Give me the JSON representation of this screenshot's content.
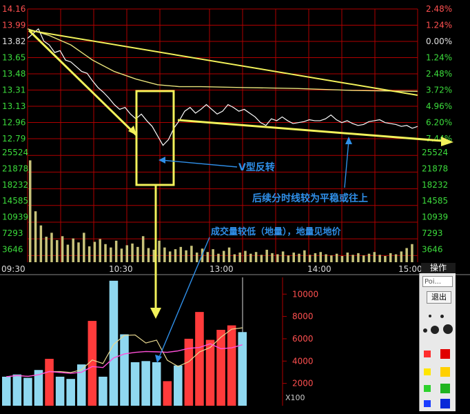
{
  "chart_data": [
    {
      "type": "line",
      "name": "intraday-price",
      "price_ticks": [
        "14.16",
        "13.99",
        "13.82",
        "13.65",
        "13.48",
        "13.31",
        "13.13",
        "12.96",
        "12.79"
      ],
      "percent_ticks": [
        "2.48%",
        "1.24%",
        "0.00%",
        "1.24%",
        "2.48%",
        "3.72%",
        "4.96%",
        "6.20%",
        "7.44%"
      ],
      "volume_ticks": [
        "25524",
        "21878",
        "18232",
        "14585",
        "10939",
        "7293",
        "3646"
      ],
      "time_ticks": [
        "09:30",
        "10:30",
        "13:00",
        "14:00",
        "15:00"
      ],
      "price_ylim": [
        12.79,
        14.16
      ],
      "prev_close": 13.82,
      "price_series": [
        [
          0,
          13.85
        ],
        [
          1,
          13.9
        ],
        [
          2,
          13.95
        ],
        [
          3,
          13.82
        ],
        [
          4,
          13.78
        ],
        [
          5,
          13.7
        ],
        [
          6,
          13.72
        ],
        [
          7,
          13.62
        ],
        [
          8,
          13.6
        ],
        [
          9,
          13.55
        ],
        [
          10,
          13.5
        ],
        [
          11,
          13.48
        ],
        [
          12,
          13.4
        ],
        [
          13,
          13.33
        ],
        [
          14,
          13.28
        ],
        [
          15,
          13.22
        ],
        [
          16,
          13.15
        ],
        [
          17,
          13.1
        ],
        [
          18,
          13.12
        ],
        [
          19,
          13.05
        ],
        [
          20,
          13.0
        ],
        [
          21,
          13.05
        ],
        [
          22,
          12.98
        ],
        [
          23,
          12.92
        ],
        [
          24,
          12.82
        ],
        [
          25,
          12.72
        ],
        [
          26,
          12.78
        ],
        [
          27,
          12.9
        ],
        [
          28,
          12.98
        ],
        [
          29,
          13.08
        ],
        [
          30,
          13.12
        ],
        [
          31,
          13.06
        ],
        [
          32,
          13.1
        ],
        [
          33,
          13.15
        ],
        [
          34,
          13.1
        ],
        [
          35,
          13.05
        ],
        [
          36,
          13.08
        ],
        [
          37,
          13.15
        ],
        [
          38,
          13.12
        ],
        [
          39,
          13.08
        ],
        [
          40,
          13.1
        ],
        [
          41,
          13.06
        ],
        [
          42,
          13.02
        ],
        [
          43,
          12.96
        ],
        [
          44,
          12.93
        ],
        [
          45,
          13.0
        ],
        [
          46,
          12.98
        ],
        [
          47,
          13.02
        ],
        [
          48,
          12.98
        ],
        [
          49,
          12.95
        ],
        [
          50,
          12.96
        ],
        [
          51,
          12.97
        ],
        [
          52,
          12.99
        ],
        [
          53,
          12.98
        ],
        [
          54,
          12.98
        ],
        [
          55,
          13.0
        ],
        [
          56,
          13.04
        ],
        [
          57,
          12.99
        ],
        [
          58,
          12.96
        ],
        [
          59,
          12.98
        ],
        [
          60,
          12.95
        ],
        [
          61,
          12.93
        ],
        [
          62,
          12.94
        ],
        [
          63,
          12.97
        ],
        [
          64,
          12.98
        ],
        [
          65,
          12.99
        ],
        [
          66,
          12.96
        ],
        [
          67,
          12.95
        ],
        [
          68,
          12.94
        ],
        [
          69,
          12.92
        ],
        [
          70,
          12.93
        ],
        [
          71,
          12.9
        ],
        [
          72,
          12.92
        ]
      ],
      "avg_series": [
        [
          0,
          13.95
        ],
        [
          4,
          13.88
        ],
        [
          8,
          13.78
        ],
        [
          12,
          13.62
        ],
        [
          16,
          13.5
        ],
        [
          20,
          13.42
        ],
        [
          24,
          13.36
        ],
        [
          28,
          13.34
        ],
        [
          32,
          13.34
        ],
        [
          40,
          13.33
        ],
        [
          50,
          13.32
        ],
        [
          60,
          13.3
        ],
        [
          72,
          13.29
        ]
      ],
      "intraday_volume": [
        18000,
        9000,
        6500,
        4500,
        5200,
        3900,
        4600,
        3100,
        4200,
        3500,
        5200,
        2800,
        3600,
        4100,
        3200,
        2600,
        3800,
        2400,
        3000,
        3300,
        2700,
        4600,
        2500,
        2200,
        3800,
        2600,
        1900,
        2300,
        2700,
        2100,
        2900,
        1700,
        2400,
        1800,
        2300,
        1500,
        2000,
        2600,
        1400,
        1700,
        2000,
        1500,
        1800,
        1300,
        2200,
        1600,
        1400,
        1900,
        1200,
        1700,
        1500,
        2100,
        1300,
        1600,
        1800,
        1400,
        1200,
        1500,
        1100,
        1700,
        1300,
        1600,
        1200,
        1500,
        1800,
        1300,
        1100,
        1600,
        1400,
        1900,
        2500,
        3200
      ]
    },
    {
      "type": "bar",
      "name": "daily-volume",
      "yticks": [
        "10000",
        "8000",
        "6000",
        "4000",
        "2000"
      ],
      "unit_label": "X100",
      "ylim": [
        0,
        11500
      ],
      "values": [
        2600,
        2800,
        2500,
        3200,
        4200,
        2600,
        2400,
        3700,
        7600,
        2600,
        11200,
        6400,
        3900,
        4000,
        3900,
        2200,
        3600,
        6000,
        8400,
        5900,
        6800,
        7200,
        6600
      ]
    }
  ],
  "annotations": {
    "v_reversal": "V型反转",
    "after": "后续分时线较为平稳或往上",
    "volume_note": "成交量较低（地量），地量见地价"
  },
  "toolbar": {
    "op_label": "操作",
    "input_placeholder": "Poi...",
    "exit_label": "退出"
  },
  "colors": {
    "grid": "#b00000",
    "price_line": "#ffffff",
    "avg_line": "#e8e27a",
    "annotation_yellow": "#f2f25a",
    "annotation_blue": "#2f8fe8",
    "volume_bar": "#c8c37a",
    "bar_red": "#ff3b3b",
    "bar_cyan": "#8fd8f0",
    "ma_yellow": "#e8d890",
    "ma_pink": "#ff4fd8",
    "up_tick": "#ff5050",
    "down_tick": "#3cdc3c",
    "neutral_tick": "#e0e0e0"
  }
}
